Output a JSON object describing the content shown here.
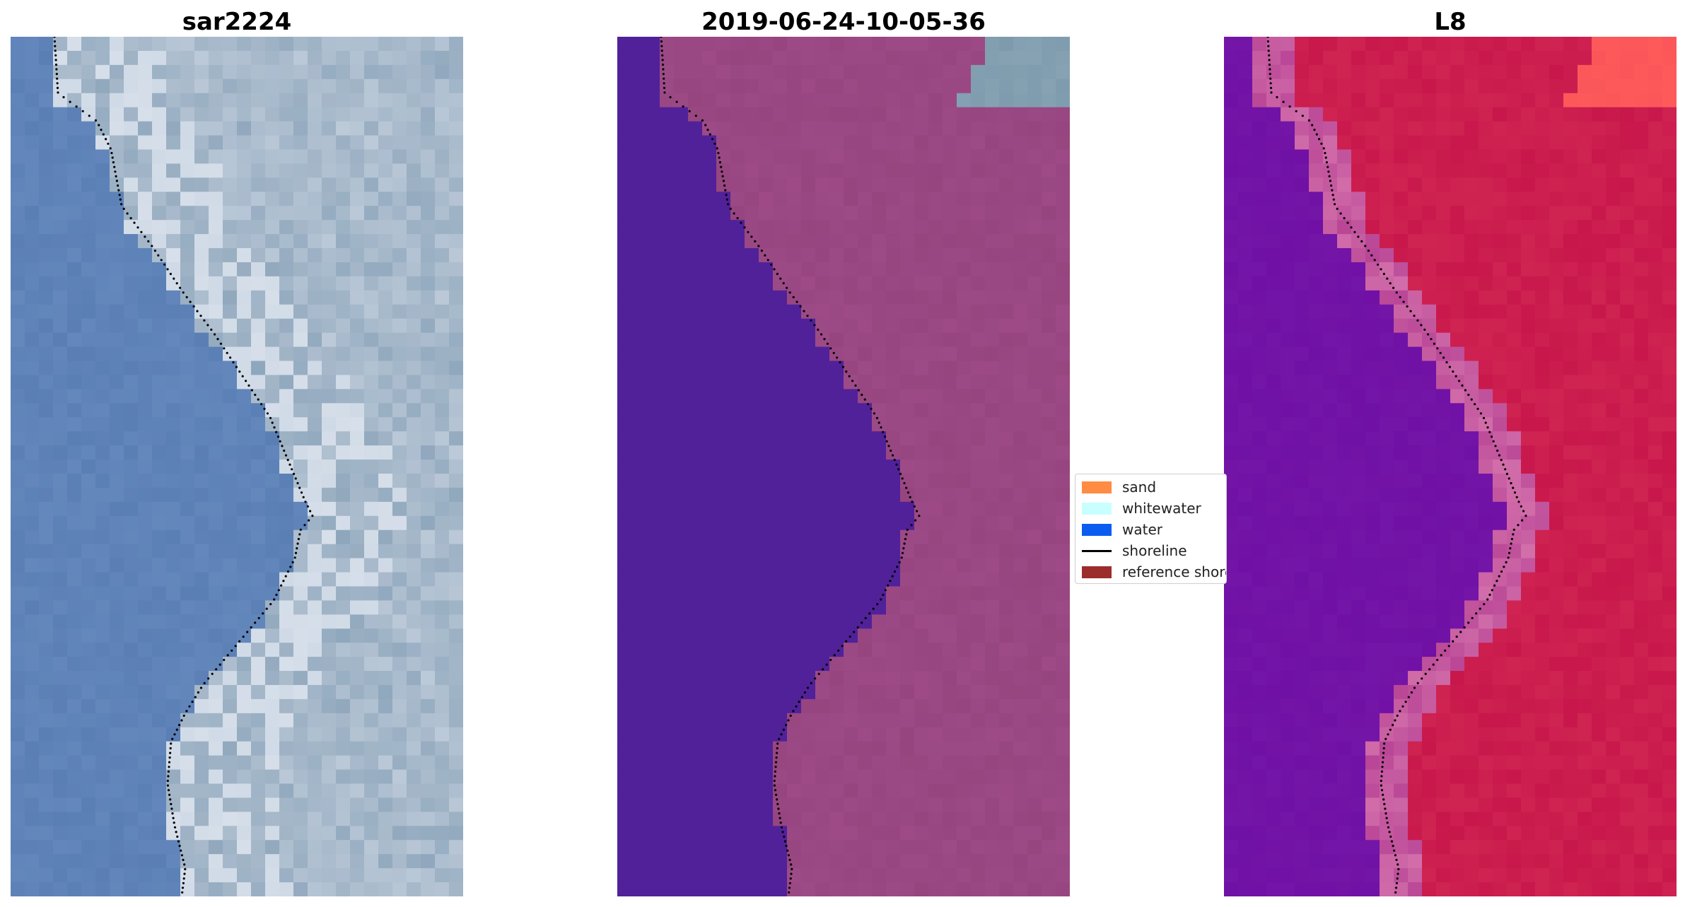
{
  "panels": [
    {
      "title": "sar2224"
    },
    {
      "title": "2019-06-24-10-05-36"
    },
    {
      "title": "L8"
    }
  ],
  "legend": {
    "items": [
      {
        "label": "sand",
        "color": "#ff8c42"
      },
      {
        "label": "whitewater",
        "color": "#c8ffff"
      },
      {
        "label": "water",
        "color": "#0a5cf0"
      },
      {
        "label": "shoreline",
        "color": "#000000"
      },
      {
        "label": "reference shoreline",
        "color": "#9b2d2d"
      }
    ]
  },
  "colors": {
    "rgb_water": "#5a7fb5",
    "rgb_land": "#a4b6c8",
    "class_water": "#51219a",
    "class_land": "#96457f",
    "class_whitewater": "#7d9bad",
    "mndwi_water": "#7010a5",
    "mndwi_land": "#c8174b",
    "mndwi_bright": "#ff5a5a"
  }
}
